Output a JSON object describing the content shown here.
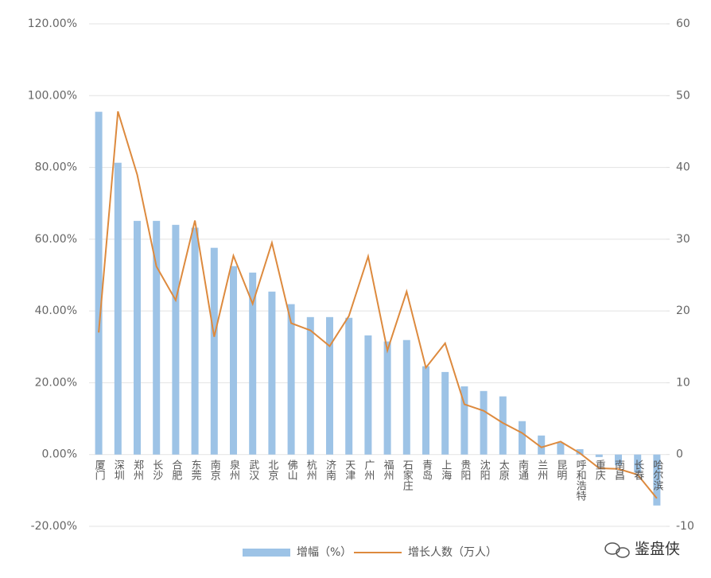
{
  "chart_data": {
    "type": "bar",
    "categories": [
      "厦门",
      "深圳",
      "郑州",
      "长沙",
      "合肥",
      "东莞",
      "南京",
      "泉州",
      "武汉",
      "北京",
      "佛山",
      "杭州",
      "济南",
      "天津",
      "广州",
      "福州",
      "石家庄",
      "青岛",
      "上海",
      "贵阳",
      "沈阳",
      "太原",
      "南通",
      "兰州",
      "昆明",
      "呼和浩特",
      "重庆",
      "南昌",
      "长春",
      "哈尔滨"
    ],
    "series": [
      {
        "name": "增幅（%）",
        "type": "bar",
        "color": "#9dc3e6",
        "values": [
          95.5,
          81.3,
          65.1,
          65.1,
          64.0,
          63.2,
          57.6,
          52.5,
          50.7,
          45.4,
          41.9,
          38.3,
          38.3,
          38.1,
          33.2,
          31.5,
          31.9,
          24.6,
          23.0,
          19.0,
          17.7,
          16.2,
          9.3,
          5.3,
          3.3,
          1.5,
          -0.7,
          -3.0,
          -5.0,
          -14.2
        ]
      },
      {
        "name": "增长人数（万人）",
        "type": "line",
        "axis": "y2",
        "color": "#dd8a3e",
        "values": [
          17.0,
          47.8,
          39.0,
          26.2,
          21.5,
          32.6,
          16.4,
          27.7,
          21.0,
          29.5,
          18.3,
          17.3,
          15.1,
          19.3,
          27.6,
          14.5,
          22.7,
          12.1,
          15.5,
          7.0,
          6.1,
          4.4,
          3.0,
          1.0,
          1.8,
          0.2,
          -1.9,
          -2.0,
          -2.8,
          -6.1
        ]
      }
    ],
    "ylim": [
      -20,
      120
    ],
    "yticks": [
      {
        "value": -20,
        "label": "-20.00%"
      },
      {
        "value": 0,
        "label": "0.00%"
      },
      {
        "value": 20,
        "label": "20.00%"
      },
      {
        "value": 40,
        "label": "40.00%"
      },
      {
        "value": 60,
        "label": "60.00%"
      },
      {
        "value": 80,
        "label": "80.00%"
      },
      {
        "value": 100,
        "label": "100.00%"
      },
      {
        "value": 120,
        "label": "120.00%"
      }
    ],
    "y2lim": [
      -10,
      60
    ],
    "y2ticks": [
      -10,
      0,
      10,
      20,
      30,
      40,
      50,
      60
    ],
    "grid": true,
    "legend": "bottom"
  },
  "watermark": "鉴盘侠"
}
